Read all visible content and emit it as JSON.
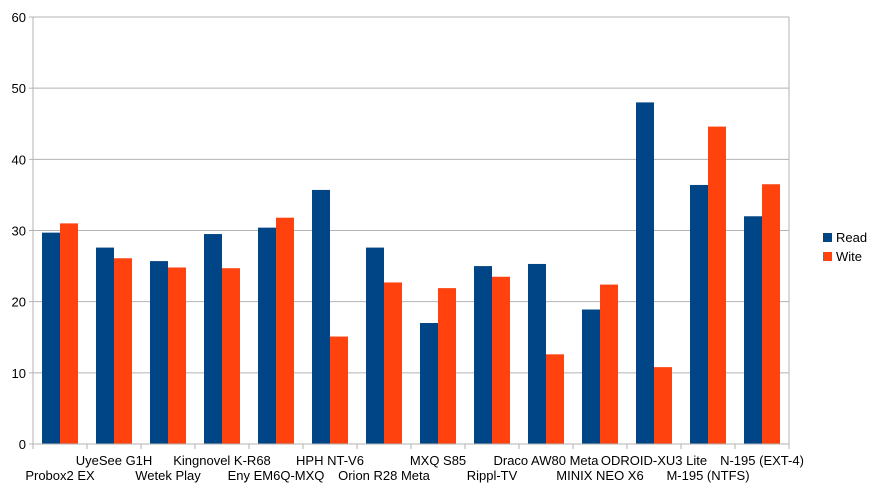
{
  "chart_data": {
    "type": "bar",
    "title": "",
    "xlabel": "",
    "ylabel": "",
    "ylim": [
      0,
      60
    ],
    "yticks": [
      0,
      10,
      20,
      30,
      40,
      50,
      60
    ],
    "grid": true,
    "legend_position": "right",
    "categories": [
      "Probox2 EX",
      "UyeSee G1H",
      "Wetek Play",
      "Kingnovel K-R68",
      "Eny EM6Q-MXQ",
      "HPH NT-V6",
      "Orion R28 Meta",
      "MXQ S85",
      "Rippl-TV",
      "Draco AW80 Meta",
      "MINIX NEO X6",
      "ODROID-XU3 Lite",
      "M-195 (NTFS)",
      "N-195 (EXT-4)"
    ],
    "series": [
      {
        "name": "Read",
        "color": "#004586",
        "values": [
          29.7,
          27.6,
          25.7,
          29.5,
          30.4,
          35.7,
          27.6,
          17.0,
          25.0,
          25.3,
          18.9,
          48.0,
          36.4,
          32.0
        ]
      },
      {
        "name": "Wite",
        "color": "#ff420e",
        "values": [
          31.0,
          26.1,
          24.8,
          24.7,
          31.8,
          15.1,
          22.7,
          21.9,
          23.5,
          12.6,
          22.4,
          10.8,
          44.6,
          36.5
        ]
      }
    ]
  }
}
